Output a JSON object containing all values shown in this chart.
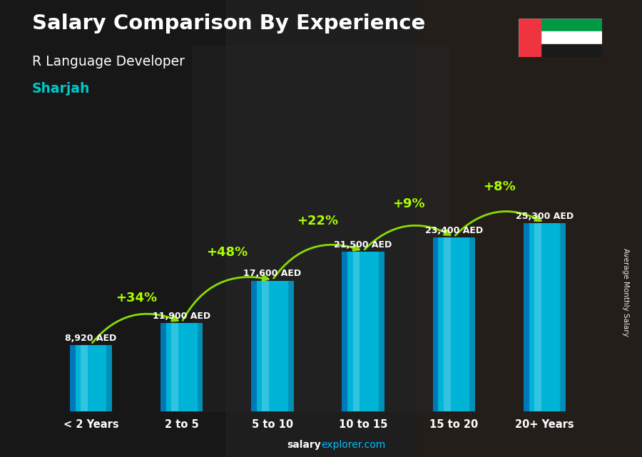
{
  "title": "Salary Comparison By Experience",
  "subtitle": "R Language Developer",
  "city": "Sharjah",
  "ylabel": "Average Monthly Salary",
  "categories": [
    "< 2 Years",
    "2 to 5",
    "5 to 10",
    "10 to 15",
    "15 to 20",
    "20+ Years"
  ],
  "values": [
    8920,
    11900,
    17600,
    21500,
    23400,
    25300
  ],
  "labels": [
    "8,920 AED",
    "11,900 AED",
    "17,600 AED",
    "21,500 AED",
    "23,400 AED",
    "25,300 AED"
  ],
  "pct_changes": [
    "+34%",
    "+48%",
    "+22%",
    "+9%",
    "+8%"
  ],
  "bar_color_main": "#00B4D8",
  "bar_color_light": "#48CAE4",
  "bar_color_dark": "#0077B6",
  "bg_dark": "#1a1a2a",
  "title_color": "#FFFFFF",
  "subtitle_color": "#FFFFFF",
  "city_color": "#00C8C8",
  "label_color": "#FFFFFF",
  "pct_color": "#AAFF00",
  "arrow_color": "#88DD00",
  "footer_color_bold": "#FFFFFF",
  "footer_color_normal": "#00BFFF",
  "ylim_max": 32000,
  "bar_width": 0.52
}
